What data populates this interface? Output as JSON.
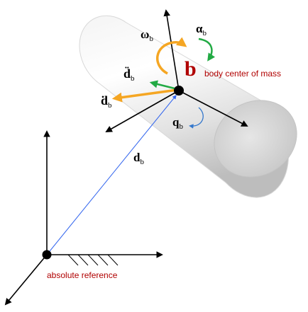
{
  "colors": {
    "axis": "#000000",
    "position_vector": "#3366ee",
    "omega_arrow": "#f5a623",
    "alpha_arrow": "#22aa44",
    "q_arrow": "#3377cc",
    "velocity_arrow": "#f5a623",
    "accel_arrow": "#22aa44",
    "body_label": "#b00000",
    "ref_label": "#b00000"
  },
  "labels": {
    "omega": {
      "main": "ω",
      "sub": "b"
    },
    "alpha": {
      "main": "α",
      "sub": "b"
    },
    "body_point": "b",
    "body_center": "body center of mass",
    "accel": {
      "main": "d̈",
      "sub": "b"
    },
    "velocity": {
      "main": "ḋ",
      "sub": "b"
    },
    "q": {
      "main": "q",
      "sub": "b"
    },
    "position": {
      "main": "d",
      "sub": "b"
    },
    "absolute_reference": "absolute reference"
  }
}
